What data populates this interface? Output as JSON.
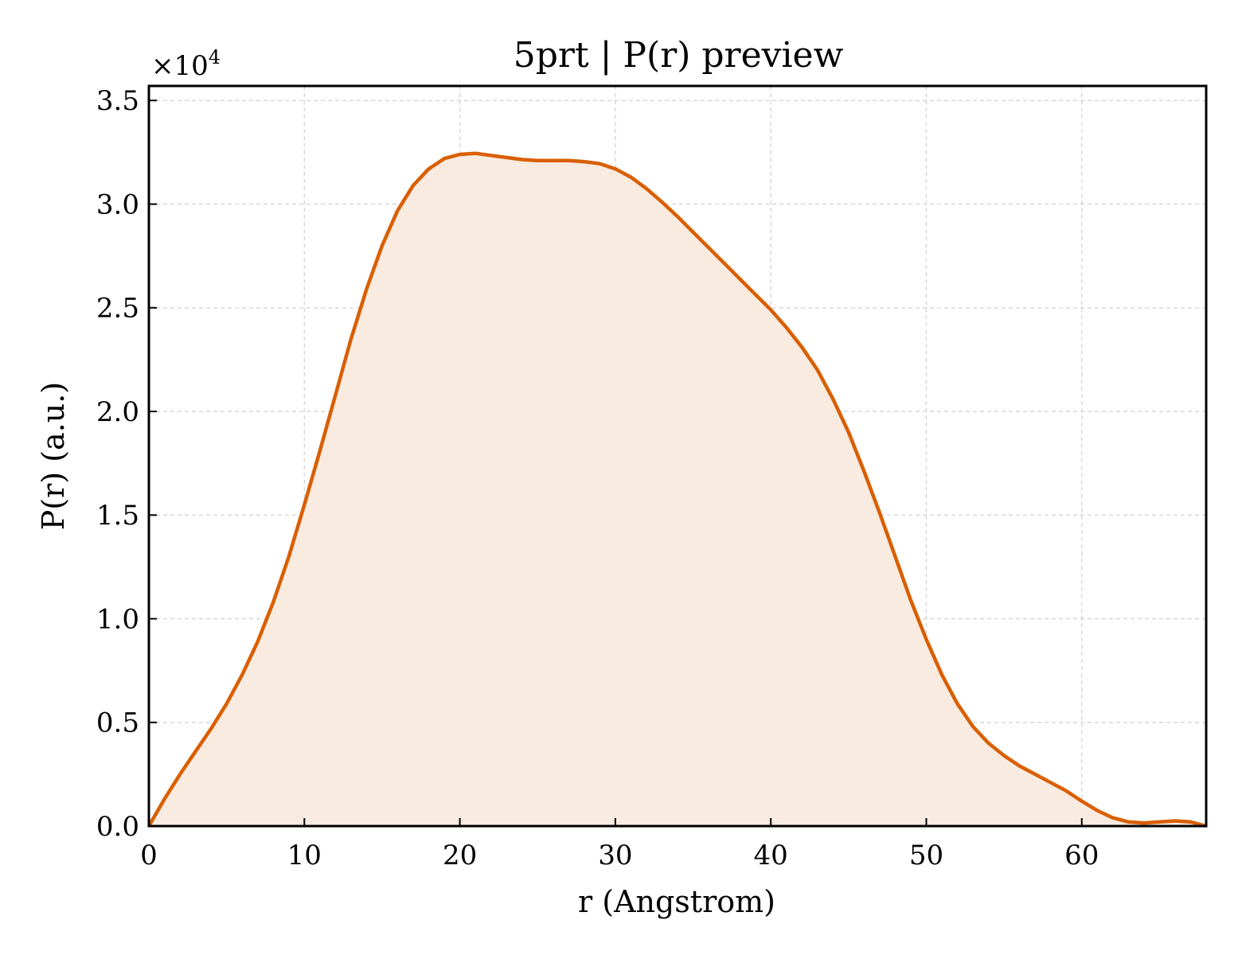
{
  "chart_data": {
    "type": "area",
    "title": "5prt | P(r) preview",
    "xlabel": "r (Angstrom)",
    "ylabel": "P(r) (a.u.)",
    "y_multiplier": {
      "base": "×10",
      "exponent": "4"
    },
    "xlim": [
      0,
      68
    ],
    "ylim": [
      0,
      3.57
    ],
    "x_ticks": [
      0,
      10,
      20,
      30,
      40,
      50,
      60
    ],
    "x_tick_labels": [
      "0",
      "10",
      "20",
      "30",
      "40",
      "50",
      "60"
    ],
    "y_ticks": [
      0,
      0.5,
      1.0,
      1.5,
      2.0,
      2.5,
      3.0,
      3.5
    ],
    "y_tick_labels": [
      "0.0",
      "0.5",
      "1.0",
      "1.5",
      "2.0",
      "2.5",
      "3.0",
      "3.5"
    ],
    "grid": true,
    "colors": {
      "line": "#d95f02",
      "fill": "#f9ebe0"
    },
    "series": [
      {
        "x": [
          0,
          1,
          2,
          3,
          4,
          5,
          6,
          7,
          8,
          9,
          10,
          11,
          12,
          13,
          14,
          15,
          16,
          17,
          18,
          19,
          20,
          21,
          22,
          23,
          24,
          25,
          26,
          27,
          28,
          29,
          30,
          31,
          32,
          33,
          34,
          35,
          36,
          37,
          38,
          39,
          40,
          41,
          42,
          43,
          44,
          45,
          46,
          47,
          48,
          49,
          50,
          51,
          52,
          53,
          54,
          55,
          56,
          57,
          58,
          59,
          60,
          61,
          62,
          63,
          64,
          65,
          66,
          67,
          68
        ],
        "y": [
          0.0,
          0.13,
          0.25,
          0.36,
          0.47,
          0.59,
          0.73,
          0.89,
          1.08,
          1.3,
          1.55,
          1.81,
          2.08,
          2.35,
          2.59,
          2.8,
          2.97,
          3.09,
          3.17,
          3.22,
          3.24,
          3.245,
          3.235,
          3.225,
          3.215,
          3.21,
          3.21,
          3.21,
          3.205,
          3.195,
          3.17,
          3.13,
          3.075,
          3.01,
          2.94,
          2.865,
          2.79,
          2.715,
          2.64,
          2.565,
          2.49,
          2.405,
          2.31,
          2.2,
          2.06,
          1.9,
          1.71,
          1.51,
          1.3,
          1.09,
          0.9,
          0.73,
          0.59,
          0.48,
          0.4,
          0.34,
          0.29,
          0.25,
          0.21,
          0.17,
          0.12,
          0.075,
          0.04,
          0.02,
          0.015,
          0.02,
          0.025,
          0.02,
          0.0
        ]
      }
    ]
  }
}
